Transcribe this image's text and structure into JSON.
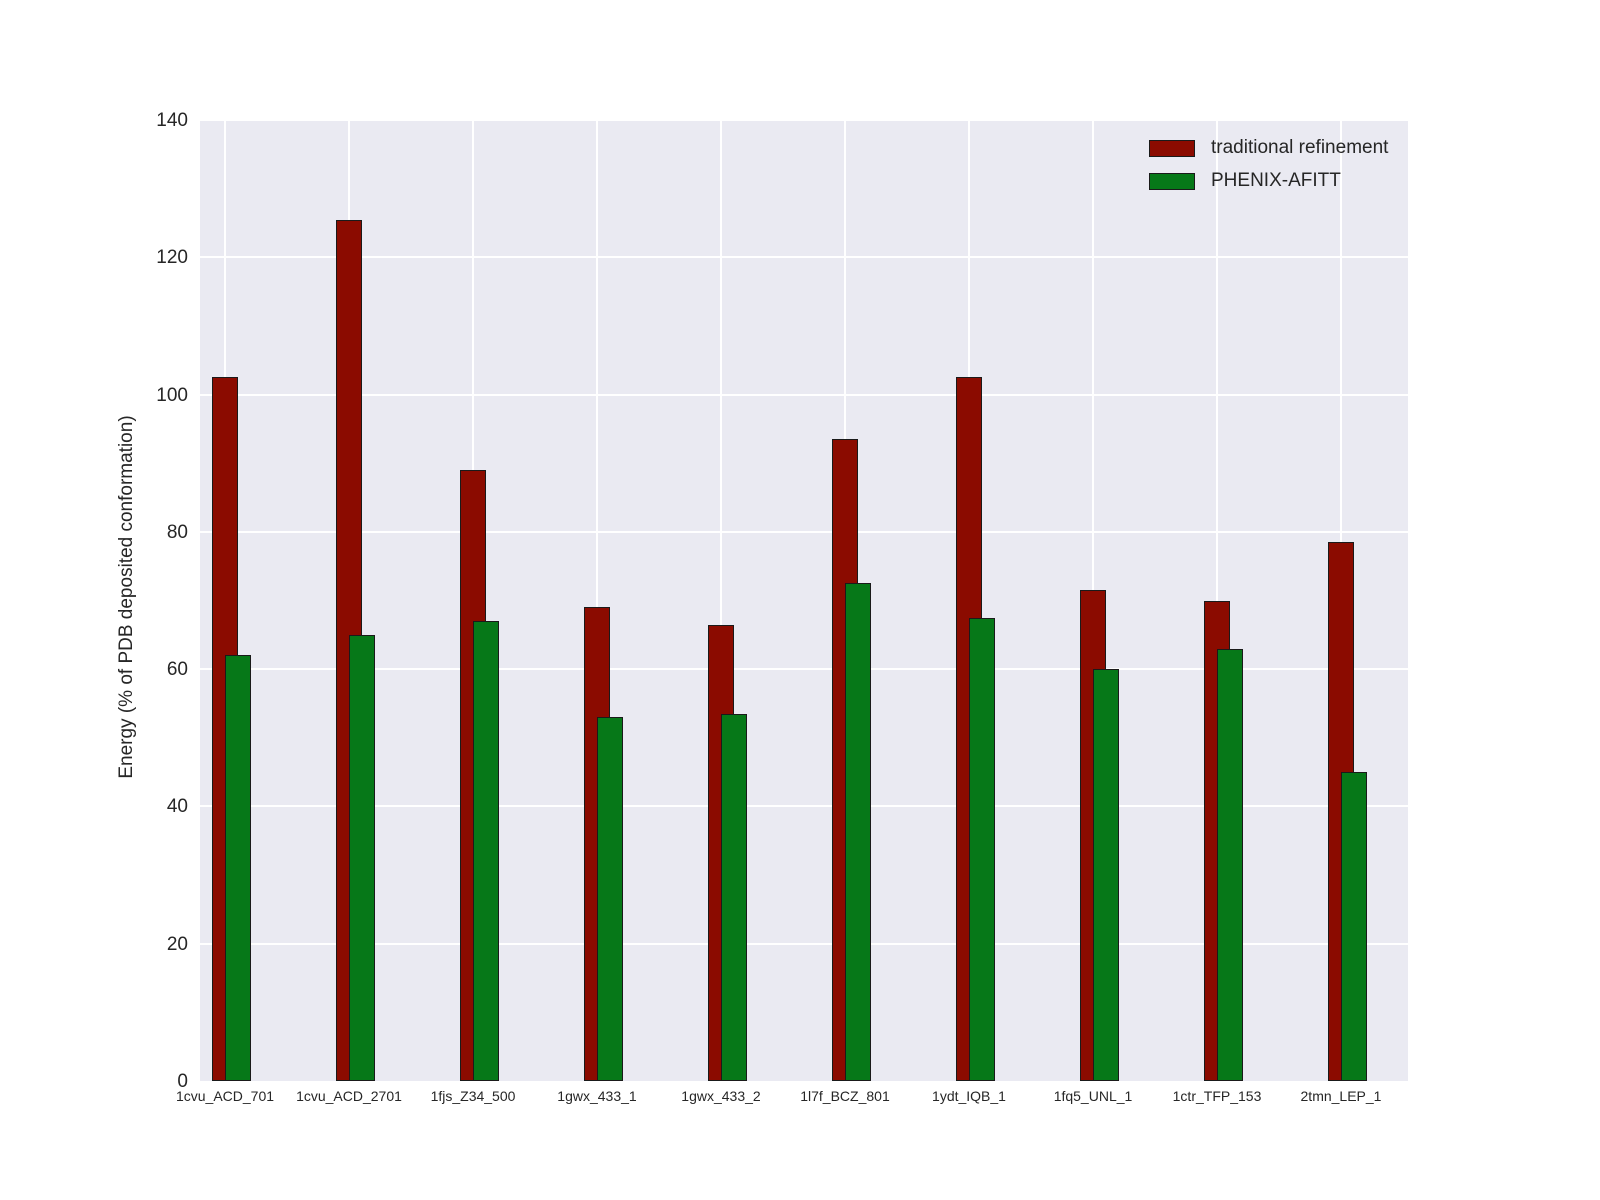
{
  "chart_data": {
    "type": "bar",
    "title": "",
    "xlabel": "",
    "ylabel": "Energy (% of PDB deposited conformation)",
    "ylim": [
      0,
      140
    ],
    "ytick_step": 20,
    "yticks": [
      0,
      20,
      40,
      60,
      80,
      100,
      120,
      140
    ],
    "grid": true,
    "legend_position": "upper right",
    "categories": [
      "1cvu_ACD_701",
      "1cvu_ACD_2701",
      "1fjs_Z34_500",
      "1gwx_433_1",
      "1gwx_433_2",
      "1l7f_BCZ_801",
      "1ydt_IQB_1",
      "1fq5_UNL_1",
      "1ctr_TFP_153",
      "2tmn_LEP_1"
    ],
    "series": [
      {
        "name": "traditional refinement",
        "color": "#8b0b00",
        "values": [
          102.5,
          125.5,
          89.0,
          69.0,
          66.5,
          93.5,
          102.5,
          71.5,
          70.0,
          78.5
        ]
      },
      {
        "name": "PHENIX-AFITT",
        "color": "#067818",
        "values": [
          62.0,
          65.0,
          67.0,
          53.0,
          53.5,
          72.5,
          67.5,
          60.0,
          63.0,
          45.0
        ]
      }
    ]
  },
  "colors": {
    "figure_bg": "#ffffff",
    "plot_bg": "#eaeaf2",
    "gridline": "#ffffff",
    "bar_edge": "#1a1a1a",
    "text": "#262626"
  }
}
